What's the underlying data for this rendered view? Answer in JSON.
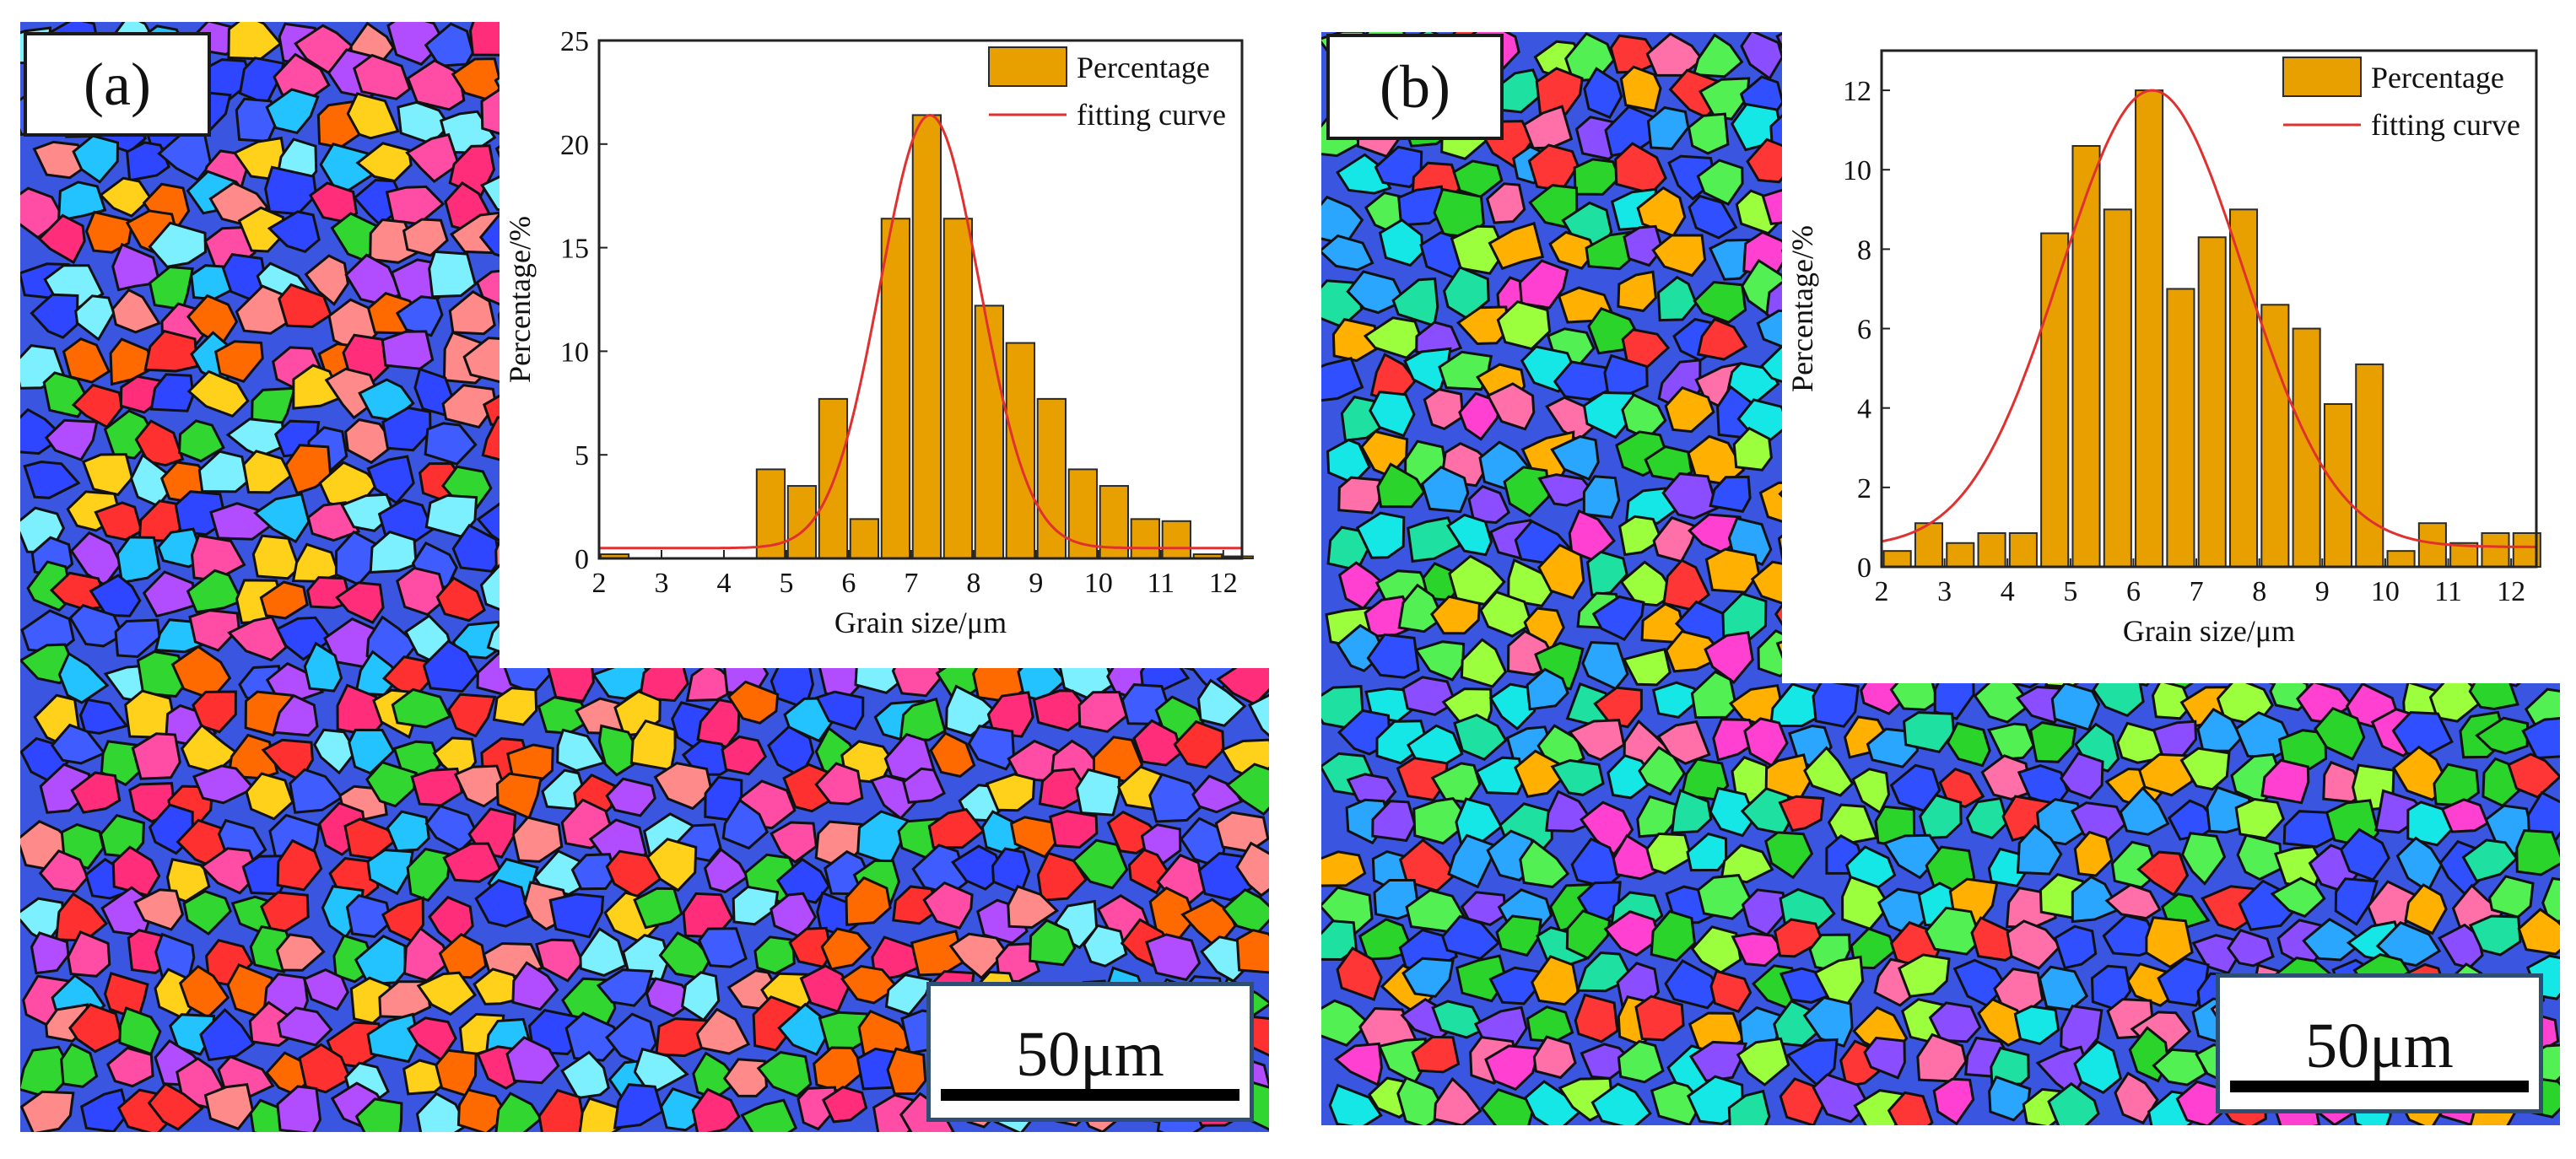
{
  "colors": {
    "bar_fill": "#e8a000",
    "bar_stroke": "#2a2a2a",
    "curve": "#e03030",
    "grain_boundary": "#111111",
    "scale_frame": "#2e4e73",
    "grain_palette_a": [
      "#ff3030",
      "#ff4da6",
      "#2e46ff",
      "#3f5cff",
      "#ff6a00",
      "#ffd11a",
      "#31d631",
      "#23c3ff",
      "#b14dff",
      "#ff2d7a",
      "#ff8a8a",
      "#7df0ff"
    ],
    "grain_palette_b": [
      "#2bd42b",
      "#52f052",
      "#1ee0a0",
      "#2aa6ff",
      "#3050ff",
      "#8a4dff",
      "#ff40d0",
      "#ff3636",
      "#ffb000",
      "#15e6e6",
      "#9cff3d",
      "#ff70a8"
    ]
  },
  "panels": [
    {
      "label": "(a)",
      "scale_text": "50μm"
    },
    {
      "label": "(b)",
      "scale_text": "50μm"
    }
  ],
  "chart_data": [
    {
      "type": "bar",
      "title": "",
      "xlabel": "Grain size/μm",
      "ylabel": "Percentage/%",
      "xlim": [
        2,
        12.3
      ],
      "ylim": [
        0,
        25
      ],
      "xticks": [
        2,
        3,
        4,
        5,
        6,
        7,
        8,
        9,
        10,
        11,
        12
      ],
      "yticks": [
        0,
        5,
        10,
        15,
        20,
        25
      ],
      "bar_width": 0.45,
      "legend": {
        "position": "top-right",
        "entries": [
          "Percentage",
          "fitting curve"
        ]
      },
      "series": [
        {
          "name": "Percentage",
          "x": [
            2.25,
            4.75,
            5.25,
            5.75,
            6.25,
            6.75,
            7.25,
            7.75,
            8.25,
            8.75,
            9.25,
            9.75,
            10.25,
            10.75,
            11.25,
            11.75,
            12.25
          ],
          "values": [
            0.2,
            4.3,
            3.5,
            7.7,
            1.9,
            16.4,
            21.4,
            16.4,
            12.2,
            10.4,
            7.7,
            4.3,
            3.5,
            1.9,
            1.8,
            0.2,
            0.1
          ]
        },
        {
          "name": "fitting curve",
          "kind": "gaussian",
          "baseline": 0.5,
          "amplitude": 20.9,
          "center": 7.3,
          "sigma": 0.8
        }
      ]
    },
    {
      "type": "bar",
      "title": "",
      "xlabel": "Grain size/μm",
      "ylabel": "Percentage/%",
      "xlim": [
        2,
        12.4
      ],
      "ylim": [
        0,
        13
      ],
      "xticks": [
        2,
        3,
        4,
        5,
        6,
        7,
        8,
        9,
        10,
        11,
        12
      ],
      "yticks": [
        0,
        2,
        4,
        6,
        8,
        10,
        12
      ],
      "bar_width": 0.43,
      "legend": {
        "position": "top-right",
        "entries": [
          "Percentage",
          "fitting curve"
        ]
      },
      "series": [
        {
          "name": "Percentage",
          "x": [
            2.25,
            2.75,
            3.25,
            3.75,
            4.25,
            4.75,
            5.25,
            5.75,
            6.25,
            6.75,
            7.25,
            7.75,
            8.25,
            8.75,
            9.25,
            9.75,
            10.25,
            10.75,
            11.25,
            11.75,
            12.25
          ],
          "values": [
            0.4,
            1.1,
            0.6,
            0.85,
            0.85,
            8.4,
            10.6,
            9.0,
            12.0,
            7.0,
            8.3,
            9.0,
            6.6,
            6.0,
            4.1,
            5.1,
            0.4,
            1.1,
            0.6,
            0.85,
            0.85
          ]
        },
        {
          "name": "fitting curve",
          "kind": "gaussian",
          "baseline": 0.5,
          "amplitude": 11.5,
          "center": 6.3,
          "sigma": 1.45
        }
      ]
    }
  ]
}
